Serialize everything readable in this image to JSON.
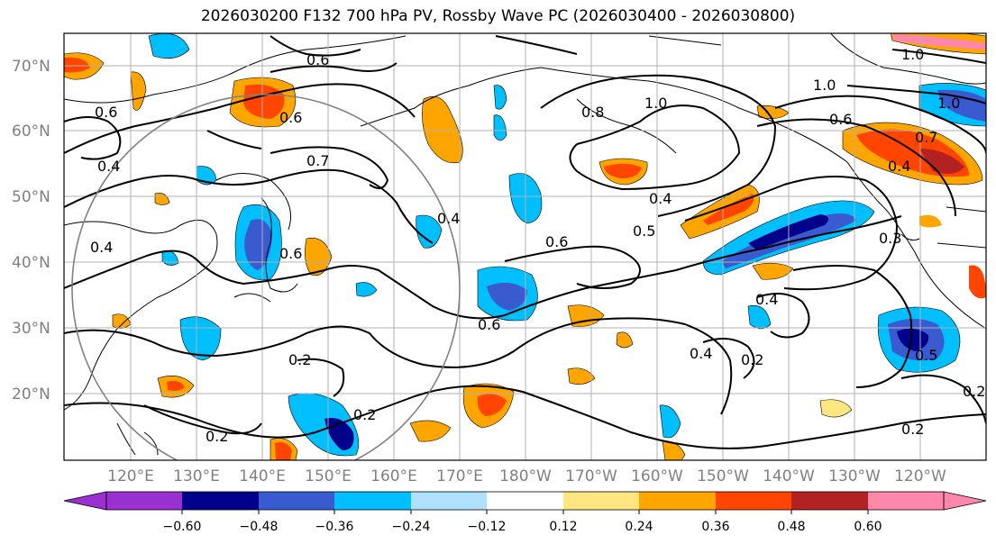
{
  "title": "2026030200 F132 700 hPa PV, Rossby Wave PC (2026030400 - 2026030800)",
  "lat_labels": [
    "70°N",
    "60°N",
    "50°N",
    "40°N",
    "30°N",
    "20°N"
  ],
  "lon_labels": [
    "120°E",
    "130°E",
    "140°E",
    "150°E",
    "160°E",
    "170°E",
    "180°W",
    "170°W",
    "160°W",
    "150°W",
    "140°W",
    "130°W",
    "120°W"
  ],
  "contour_labels": [
    "0.6",
    "0.6",
    "0.6",
    "0.7",
    "0.4",
    "0.4",
    "0.6",
    "0.4",
    "0.2",
    "0.2",
    "0.2",
    "0.6",
    "0.6",
    "0.5",
    "0.4",
    "0.8",
    "1.0",
    "1.0",
    "1.0",
    "1.0",
    "0.6",
    "0.4",
    "0.4",
    "0.2",
    "0.2",
    "0.5",
    "0.3",
    "0.2",
    "0.7"
  ],
  "colorbar": {
    "ticks": [
      "−0.60",
      "−0.48",
      "−0.36",
      "−0.24",
      "−0.12",
      "0.12",
      "0.24",
      "0.36",
      "0.48",
      "0.60"
    ],
    "colors": [
      "#9b30d0",
      "#00008b",
      "#3a5bd0",
      "#00bfff",
      "#b0e0ff",
      "#ffffff",
      "#ffe680",
      "#ffa500",
      "#ff4500",
      "#b22222",
      "#ff88aa",
      "#ff88aa"
    ]
  }
}
